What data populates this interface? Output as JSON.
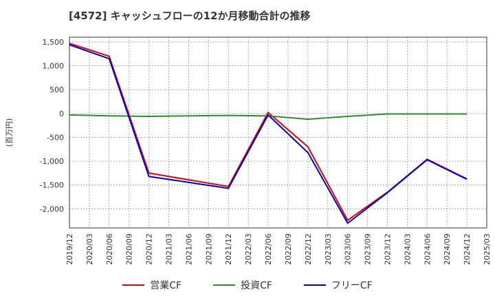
{
  "chart_data": {
    "type": "line",
    "title": "[4572]  キャッシュフローの12か月移動合計の推移",
    "ylabel": "(百万円)",
    "xlabel": "",
    "ylim": [
      -2400,
      1600
    ],
    "yticks": [
      1500,
      1000,
      500,
      0,
      -500,
      -1000,
      -1500,
      -2000
    ],
    "ytick_labels": [
      "1,500",
      "1,000",
      "500",
      "0",
      "-500",
      "-1,000",
      "-1,500",
      "-2,000"
    ],
    "categories": [
      "2019/12",
      "2020/03",
      "2020/06",
      "2020/09",
      "2020/12",
      "2021/03",
      "2021/06",
      "2021/09",
      "2021/12",
      "2022/03",
      "2022/06",
      "2022/09",
      "2022/12",
      "2023/03",
      "2023/06",
      "2023/09",
      "2023/12",
      "2024/03",
      "2024/06",
      "2024/09",
      "2024/12",
      "2025/03"
    ],
    "grid": true,
    "legend_position": "bottom",
    "series": [
      {
        "name": "営業CF",
        "color": "#e00000",
        "values": [
          1470,
          null,
          1200,
          null,
          -1250,
          null,
          null,
          null,
          -1530,
          null,
          20,
          null,
          -700,
          null,
          -2240,
          null,
          -1650,
          null,
          -960,
          null,
          -1370,
          null
        ]
      },
      {
        "name": "投資CF",
        "color": "#2e8b2e",
        "values": [
          -30,
          null,
          -50,
          null,
          -60,
          null,
          null,
          null,
          -40,
          null,
          -50,
          null,
          -120,
          null,
          -60,
          null,
          -10,
          null,
          -10,
          null,
          -10,
          null
        ]
      },
      {
        "name": "フリーCF",
        "color": "#0000c8",
        "values": [
          1440,
          null,
          1150,
          null,
          -1320,
          null,
          null,
          null,
          -1570,
          null,
          -30,
          null,
          -820,
          null,
          -2300,
          null,
          -1660,
          null,
          -970,
          null,
          -1380,
          null
        ]
      }
    ]
  }
}
